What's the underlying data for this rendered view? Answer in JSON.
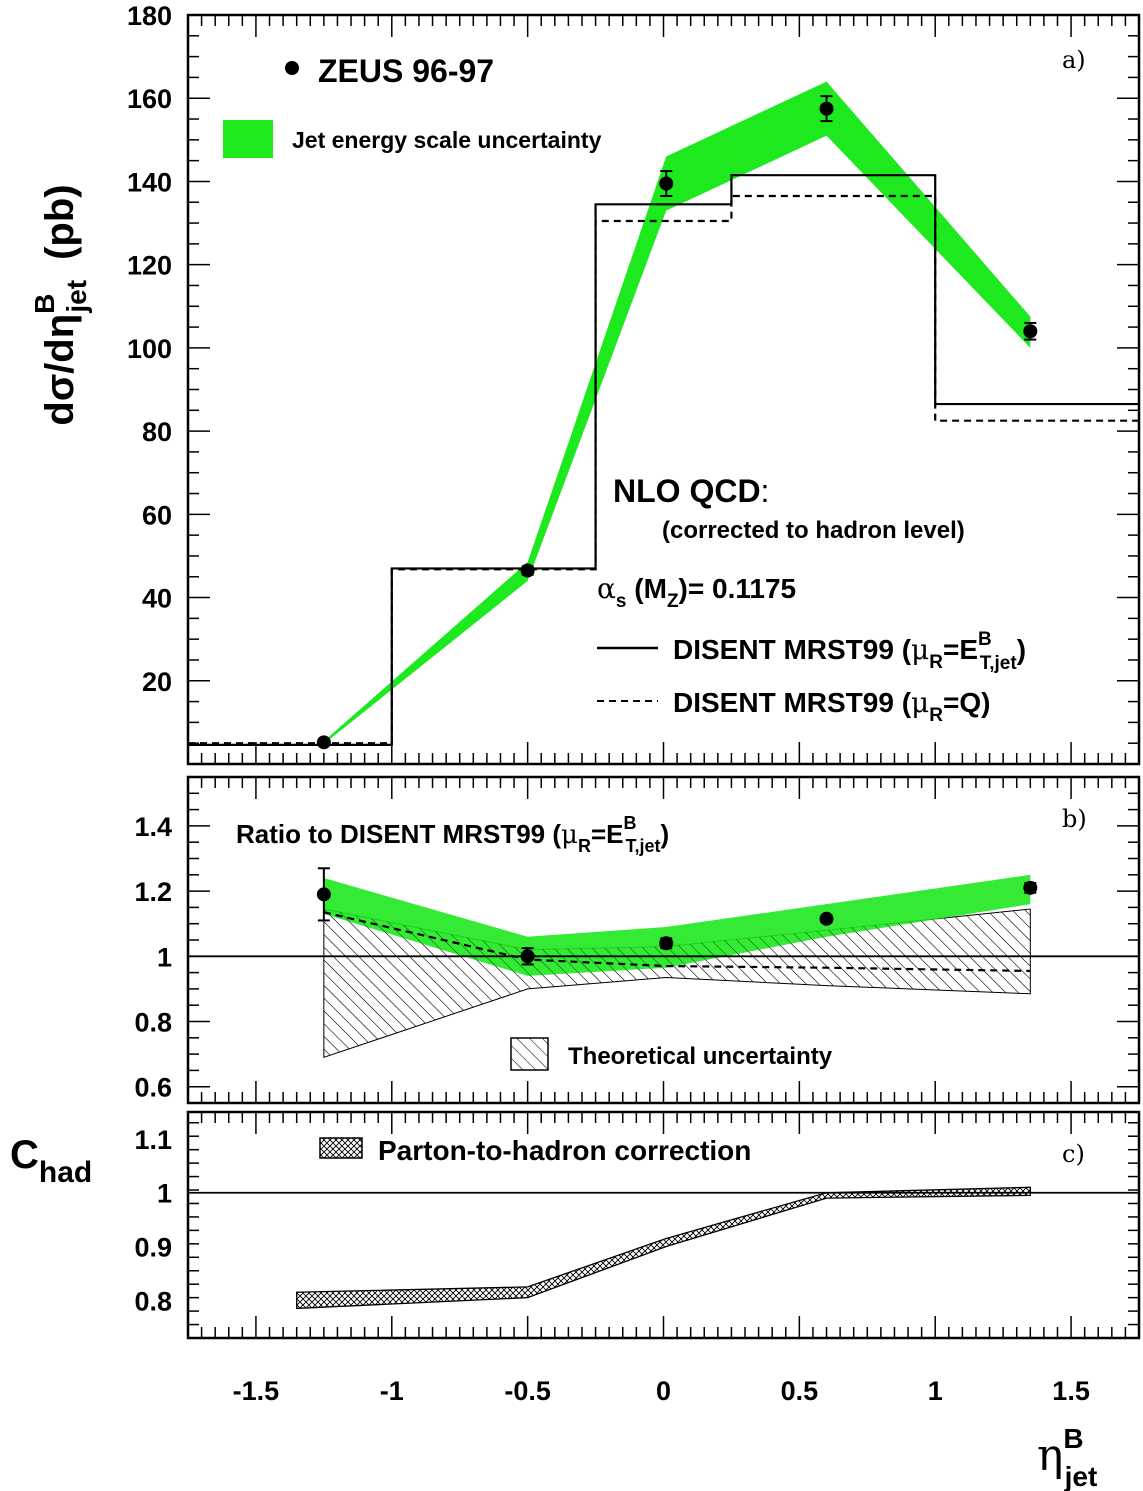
{
  "chart_data": [
    {
      "panel": "a)",
      "type": "line",
      "ylabel": "dσ/dη",
      "ylabel_super": "B",
      "ylabel_sub": "jet",
      "ylabel_unit": "(pb)",
      "ylim": [
        0,
        180
      ],
      "yticks": [
        20,
        40,
        60,
        80,
        100,
        120,
        140,
        160,
        180
      ],
      "xlim": [
        -1.75,
        1.75
      ],
      "bin_edges": [
        -1.75,
        -1,
        -0.25,
        0.25,
        1,
        1.75
      ],
      "series": [
        {
          "name": "ZEUS 96-97",
          "kind": "points",
          "x": [
            -1.25,
            -0.5,
            0.01,
            0.6,
            1.35
          ],
          "y": [
            5.2,
            46.5,
            139.5,
            157.5,
            104
          ],
          "err": [
            0.5,
            1,
            3,
            3,
            2
          ]
        },
        {
          "name": "Jet energy scale uncertainty",
          "kind": "band",
          "color": "#1ee81e",
          "x": [
            -1.25,
            -0.5,
            0.01,
            0.6,
            1.35
          ],
          "lo": [
            4.8,
            44,
            133,
            151,
            100
          ],
          "hi": [
            5.5,
            48.5,
            146,
            164,
            107.5
          ]
        },
        {
          "name": "DISENT MRST99 (μR=E^B_T,jet)",
          "kind": "step",
          "style": "solid",
          "values": [
            4.6,
            47,
            134.5,
            141.5,
            86.5
          ]
        },
        {
          "name": "DISENT MRST99 (μR=Q)",
          "kind": "step",
          "style": "dashed",
          "values": [
            5,
            46.8,
            130.5,
            136.5,
            82.5
          ]
        }
      ],
      "legend": {
        "data": "ZEUS 96-97",
        "band": "Jet energy scale uncertainty",
        "nlo_title": "NLO QCD",
        "nlo_colon": ":",
        "nlo_sub": "(corrected to hadron level)",
        "alpha_value": "= 0.1175",
        "solid_label": "DISENT MRST99",
        "dashed_label": "DISENT MRST99"
      }
    },
    {
      "panel": "b)",
      "type": "line",
      "title": "Ratio to DISENT MRST99",
      "ylim": [
        0.55,
        1.55
      ],
      "yticks": [
        0.6,
        0.8,
        1,
        1.2,
        1.4
      ],
      "ytick_labels": [
        "0.6",
        "0.8",
        "1",
        "1.2",
        "1.4"
      ],
      "series": [
        {
          "name": "ZEUS 96-97",
          "kind": "points",
          "x": [
            -1.25,
            -0.5,
            0.01,
            0.6,
            1.35
          ],
          "y": [
            1.19,
            1.0,
            1.04,
            1.115,
            1.21
          ],
          "err": [
            0.08,
            0.025,
            0.015,
            0.01,
            0.015
          ]
        },
        {
          "name": "Jet energy scale uncertainty",
          "kind": "band",
          "color": "#1ee81e",
          "x": [
            -1.25,
            -0.5,
            0.01,
            0.6,
            1.35
          ],
          "lo": [
            1.13,
            0.94,
            0.965,
            1.06,
            1.16
          ],
          "hi": [
            1.24,
            1.06,
            1.09,
            1.16,
            1.25
          ]
        },
        {
          "name": "Theoretical uncertainty",
          "kind": "hatch",
          "x": [
            -1.25,
            -0.5,
            0.01,
            0.6,
            1.35
          ],
          "lo": [
            0.69,
            0.9,
            0.935,
            0.91,
            0.885
          ],
          "hi": [
            1.145,
            1.02,
            1.03,
            1.08,
            1.145
          ]
        },
        {
          "name": "DISENT MRST99 (μR=Q) / (μR=E^B_T,jet)",
          "kind": "line",
          "style": "dashed",
          "x": [
            -1.25,
            -0.5,
            0.01,
            0.6,
            1.35
          ],
          "y": [
            1.135,
            0.99,
            0.97,
            0.965,
            0.955
          ]
        }
      ],
      "legend": {
        "hatch": "Theoretical uncertainty"
      }
    },
    {
      "panel": "c)",
      "type": "area",
      "ylabel": "C",
      "ylabel_sub": "had",
      "ylim": [
        0.73,
        1.15
      ],
      "yticks": [
        0.8,
        0.9,
        1,
        1.1
      ],
      "ytick_labels": [
        "0.8",
        "0.9",
        "1",
        "1.1"
      ],
      "xlabel": "η",
      "xlabel_super": "B",
      "xlabel_sub": "jet",
      "xticks": [
        -1.5,
        -1,
        -0.5,
        0,
        0.5,
        1,
        1.5
      ],
      "xtick_labels": [
        "-1.5",
        "-1",
        "-0.5",
        "0",
        "0.5",
        "1",
        "1.5"
      ],
      "series": [
        {
          "name": "Parton-to-hadron correction",
          "kind": "crosshatch",
          "x": [
            -1.35,
            -0.5,
            0.01,
            0.6,
            1.35
          ],
          "lo": [
            0.785,
            0.805,
            0.9,
            0.99,
            0.995
          ],
          "hi": [
            0.815,
            0.825,
            0.915,
            1.0,
            1.01
          ]
        }
      ],
      "legend": {
        "crosshatch": "Parton-to-hadron correction"
      }
    }
  ]
}
